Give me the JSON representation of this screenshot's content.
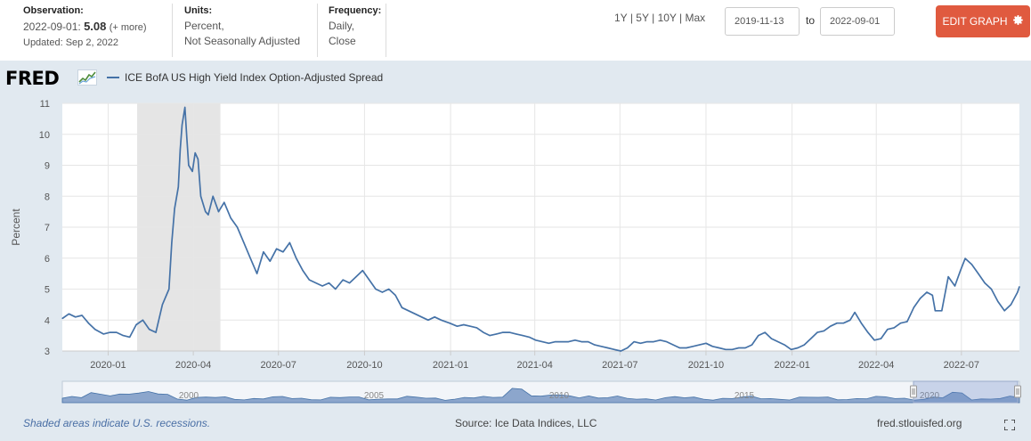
{
  "header": {
    "observation_label": "Observation:",
    "observation_date": "2022-09-01:",
    "observation_value": "5.08",
    "observation_more": "(+ more)",
    "updated": "Updated: Sep 2, 2022",
    "units_label": "Units:",
    "units_line1": "Percent,",
    "units_line2": "Not Seasonally Adjusted",
    "frequency_label": "Frequency:",
    "frequency_line1": "Daily,",
    "frequency_line2": "Close",
    "range_1y": "1Y",
    "range_5y": "5Y",
    "range_10y": "10Y",
    "range_max": "Max",
    "range_sep": "|",
    "start_date": "2019-11-13",
    "to_label": "to",
    "end_date": "2022-09-01",
    "edit_button": "EDIT GRAPH"
  },
  "logo_text": "FRED",
  "legend_label": "ICE BofA US High Yield Index Option-Adjusted Spread",
  "footer": {
    "recession_note": "Shaded areas indicate U.S. recessions.",
    "source": "Source: Ice Data Indices, LLC",
    "site": "fred.stlouisfed.org"
  },
  "colors": {
    "line": "#4572a7",
    "recession": "#e5e5e5",
    "button": "#e05a3f",
    "navigator_fill": "#8ca6cc"
  },
  "chart_data": {
    "type": "line",
    "title": "ICE BofA US High Yield Index Option-Adjusted Spread",
    "xlabel": "",
    "ylabel": "Percent",
    "ylim": [
      3,
      11
    ],
    "yticks": [
      3,
      4,
      5,
      6,
      7,
      8,
      9,
      10,
      11
    ],
    "xlim": [
      "2019-11-13",
      "2022-09-01"
    ],
    "xticks": [
      "2020-01",
      "2020-04",
      "2020-07",
      "2020-10",
      "2021-01",
      "2021-04",
      "2021-07",
      "2021-10",
      "2022-01",
      "2022-04",
      "2022-07"
    ],
    "grid": true,
    "recession_shading": [
      [
        "2020-02-01",
        "2020-04-30"
      ]
    ],
    "series": [
      {
        "name": "ICE BofA US High Yield Index Option-Adjusted Spread",
        "points": [
          [
            "2019-11-13",
            4.05
          ],
          [
            "2019-11-20",
            4.2
          ],
          [
            "2019-11-27",
            4.1
          ],
          [
            "2019-12-04",
            4.15
          ],
          [
            "2019-12-11",
            3.9
          ],
          [
            "2019-12-18",
            3.7
          ],
          [
            "2019-12-27",
            3.55
          ],
          [
            "2020-01-03",
            3.6
          ],
          [
            "2020-01-10",
            3.6
          ],
          [
            "2020-01-17",
            3.5
          ],
          [
            "2020-01-24",
            3.45
          ],
          [
            "2020-01-31",
            3.85
          ],
          [
            "2020-02-07",
            4.0
          ],
          [
            "2020-02-14",
            3.7
          ],
          [
            "2020-02-21",
            3.6
          ],
          [
            "2020-02-28",
            4.5
          ],
          [
            "2020-03-06",
            5.0
          ],
          [
            "2020-03-09",
            6.5
          ],
          [
            "2020-03-12",
            7.6
          ],
          [
            "2020-03-16",
            8.3
          ],
          [
            "2020-03-18",
            9.5
          ],
          [
            "2020-03-20",
            10.3
          ],
          [
            "2020-03-23",
            10.87
          ],
          [
            "2020-03-25",
            9.9
          ],
          [
            "2020-03-27",
            9.0
          ],
          [
            "2020-03-31",
            8.8
          ],
          [
            "2020-04-03",
            9.4
          ],
          [
            "2020-04-06",
            9.2
          ],
          [
            "2020-04-09",
            8.0
          ],
          [
            "2020-04-14",
            7.5
          ],
          [
            "2020-04-17",
            7.4
          ],
          [
            "2020-04-22",
            8.0
          ],
          [
            "2020-04-28",
            7.5
          ],
          [
            "2020-05-04",
            7.8
          ],
          [
            "2020-05-11",
            7.3
          ],
          [
            "2020-05-18",
            7.0
          ],
          [
            "2020-05-25",
            6.5
          ],
          [
            "2020-06-01",
            6.0
          ],
          [
            "2020-06-08",
            5.5
          ],
          [
            "2020-06-15",
            6.2
          ],
          [
            "2020-06-22",
            5.9
          ],
          [
            "2020-06-29",
            6.3
          ],
          [
            "2020-07-06",
            6.2
          ],
          [
            "2020-07-13",
            6.5
          ],
          [
            "2020-07-20",
            6.0
          ],
          [
            "2020-07-27",
            5.6
          ],
          [
            "2020-08-03",
            5.3
          ],
          [
            "2020-08-10",
            5.2
          ],
          [
            "2020-08-17",
            5.1
          ],
          [
            "2020-08-24",
            5.2
          ],
          [
            "2020-08-31",
            5.0
          ],
          [
            "2020-09-08",
            5.3
          ],
          [
            "2020-09-15",
            5.2
          ],
          [
            "2020-09-22",
            5.4
          ],
          [
            "2020-09-29",
            5.6
          ],
          [
            "2020-10-06",
            5.3
          ],
          [
            "2020-10-13",
            5.0
          ],
          [
            "2020-10-20",
            4.9
          ],
          [
            "2020-10-27",
            5.0
          ],
          [
            "2020-11-03",
            4.8
          ],
          [
            "2020-11-10",
            4.4
          ],
          [
            "2020-11-17",
            4.3
          ],
          [
            "2020-11-24",
            4.2
          ],
          [
            "2020-12-01",
            4.1
          ],
          [
            "2020-12-08",
            4.0
          ],
          [
            "2020-12-15",
            4.1
          ],
          [
            "2020-12-22",
            4.0
          ],
          [
            "2020-12-31",
            3.9
          ],
          [
            "2021-01-08",
            3.8
          ],
          [
            "2021-01-15",
            3.85
          ],
          [
            "2021-01-22",
            3.8
          ],
          [
            "2021-01-29",
            3.75
          ],
          [
            "2021-02-05",
            3.6
          ],
          [
            "2021-02-12",
            3.5
          ],
          [
            "2021-02-19",
            3.55
          ],
          [
            "2021-02-26",
            3.6
          ],
          [
            "2021-03-05",
            3.6
          ],
          [
            "2021-03-12",
            3.55
          ],
          [
            "2021-03-19",
            3.5
          ],
          [
            "2021-03-26",
            3.45
          ],
          [
            "2021-04-02",
            3.35
          ],
          [
            "2021-04-09",
            3.3
          ],
          [
            "2021-04-16",
            3.25
          ],
          [
            "2021-04-23",
            3.3
          ],
          [
            "2021-04-30",
            3.3
          ],
          [
            "2021-05-07",
            3.3
          ],
          [
            "2021-05-14",
            3.35
          ],
          [
            "2021-05-21",
            3.3
          ],
          [
            "2021-05-28",
            3.3
          ],
          [
            "2021-06-04",
            3.2
          ],
          [
            "2021-06-11",
            3.15
          ],
          [
            "2021-06-18",
            3.1
          ],
          [
            "2021-06-25",
            3.05
          ],
          [
            "2021-07-02",
            3.0
          ],
          [
            "2021-07-09",
            3.1
          ],
          [
            "2021-07-16",
            3.3
          ],
          [
            "2021-07-23",
            3.25
          ],
          [
            "2021-07-30",
            3.3
          ],
          [
            "2021-08-06",
            3.3
          ],
          [
            "2021-08-13",
            3.35
          ],
          [
            "2021-08-20",
            3.3
          ],
          [
            "2021-08-27",
            3.2
          ],
          [
            "2021-09-03",
            3.1
          ],
          [
            "2021-09-10",
            3.1
          ],
          [
            "2021-09-17",
            3.15
          ],
          [
            "2021-09-24",
            3.2
          ],
          [
            "2021-10-01",
            3.25
          ],
          [
            "2021-10-08",
            3.15
          ],
          [
            "2021-10-15",
            3.1
          ],
          [
            "2021-10-22",
            3.05
          ],
          [
            "2021-10-29",
            3.05
          ],
          [
            "2021-11-05",
            3.1
          ],
          [
            "2021-11-12",
            3.1
          ],
          [
            "2021-11-19",
            3.2
          ],
          [
            "2021-11-26",
            3.5
          ],
          [
            "2021-12-03",
            3.6
          ],
          [
            "2021-12-10",
            3.4
          ],
          [
            "2021-12-17",
            3.3
          ],
          [
            "2021-12-24",
            3.2
          ],
          [
            "2021-12-31",
            3.05
          ],
          [
            "2022-01-07",
            3.1
          ],
          [
            "2022-01-14",
            3.2
          ],
          [
            "2022-01-21",
            3.4
          ],
          [
            "2022-01-28",
            3.6
          ],
          [
            "2022-02-04",
            3.65
          ],
          [
            "2022-02-11",
            3.8
          ],
          [
            "2022-02-18",
            3.9
          ],
          [
            "2022-02-25",
            3.9
          ],
          [
            "2022-03-04",
            4.0
          ],
          [
            "2022-03-09",
            4.25
          ],
          [
            "2022-03-16",
            3.9
          ],
          [
            "2022-03-23",
            3.6
          ],
          [
            "2022-03-30",
            3.35
          ],
          [
            "2022-04-06",
            3.4
          ],
          [
            "2022-04-13",
            3.7
          ],
          [
            "2022-04-20",
            3.75
          ],
          [
            "2022-04-27",
            3.9
          ],
          [
            "2022-05-04",
            3.95
          ],
          [
            "2022-05-11",
            4.4
          ],
          [
            "2022-05-18",
            4.7
          ],
          [
            "2022-05-25",
            4.9
          ],
          [
            "2022-05-31",
            4.8
          ],
          [
            "2022-06-03",
            4.3
          ],
          [
            "2022-06-10",
            4.3
          ],
          [
            "2022-06-17",
            5.4
          ],
          [
            "2022-06-24",
            5.1
          ],
          [
            "2022-06-30",
            5.6
          ],
          [
            "2022-07-05",
            5.99
          ],
          [
            "2022-07-12",
            5.8
          ],
          [
            "2022-07-19",
            5.5
          ],
          [
            "2022-07-26",
            5.2
          ],
          [
            "2022-08-02",
            5.0
          ],
          [
            "2022-08-09",
            4.6
          ],
          [
            "2022-08-16",
            4.3
          ],
          [
            "2022-08-23",
            4.5
          ],
          [
            "2022-08-30",
            4.9
          ],
          [
            "2022-09-01",
            5.08
          ]
        ]
      }
    ],
    "navigator": {
      "year_labels": [
        "2000",
        "2005",
        "2010",
        "2015",
        "2020"
      ]
    }
  }
}
